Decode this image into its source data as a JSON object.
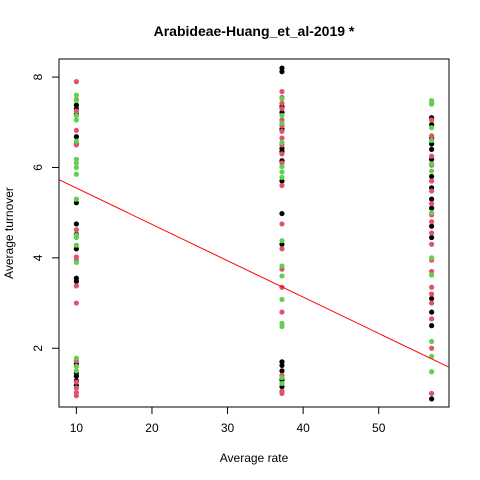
{
  "chart_data": {
    "type": "scatter",
    "title": "Arabideae-Huang_et_al-2019 *",
    "xlabel": "Average rate",
    "ylabel": "Average turnover",
    "xlim": [
      7.7,
      59.3
    ],
    "ylim": [
      0.7,
      8.4
    ],
    "x_ticks": [
      10,
      20,
      30,
      40,
      50
    ],
    "y_ticks": [
      2,
      4,
      6,
      8
    ],
    "grid": false,
    "legend": "none",
    "colors": {
      "black": "#000000",
      "red": "#DF536B",
      "green": "#61D04F",
      "fit": "#FF0000"
    },
    "series": [
      {
        "color_key": "black",
        "points": [
          [
            10,
            7.38
          ],
          [
            10,
            7.3
          ],
          [
            10,
            7.18
          ],
          [
            10,
            6.68
          ],
          [
            10,
            6.52
          ],
          [
            10,
            5.22
          ],
          [
            10,
            4.75
          ],
          [
            10,
            4.52
          ],
          [
            10,
            4.2
          ],
          [
            10,
            3.55
          ],
          [
            10,
            3.48
          ],
          [
            10,
            1.65
          ],
          [
            10,
            1.45
          ],
          [
            10,
            1.38
          ],
          [
            10,
            1.28
          ],
          [
            10,
            1.18
          ],
          [
            37.2,
            8.2
          ],
          [
            37.2,
            8.12
          ],
          [
            37.2,
            7.35
          ],
          [
            37.2,
            7.22
          ],
          [
            37.2,
            6.85
          ],
          [
            37.2,
            6.42
          ],
          [
            37.2,
            6.35
          ],
          [
            37.2,
            6.15
          ],
          [
            37.2,
            5.7
          ],
          [
            37.2,
            4.98
          ],
          [
            37.2,
            4.3
          ],
          [
            37.2,
            1.7
          ],
          [
            37.2,
            1.62
          ],
          [
            37.2,
            1.5
          ],
          [
            37.2,
            1.3
          ],
          [
            37.2,
            1.15
          ],
          [
            57,
            7.1
          ],
          [
            57,
            6.95
          ],
          [
            57,
            6.65
          ],
          [
            57,
            6.52
          ],
          [
            57,
            6.4
          ],
          [
            57,
            6.18
          ],
          [
            57,
            5.8
          ],
          [
            57,
            5.55
          ],
          [
            57,
            5.3
          ],
          [
            57,
            5.1
          ],
          [
            57,
            4.7
          ],
          [
            57,
            4.45
          ],
          [
            57,
            3.1
          ],
          [
            57,
            2.8
          ],
          [
            57,
            2.5
          ],
          [
            57,
            0.88
          ]
        ]
      },
      {
        "color_key": "red",
        "points": [
          [
            10,
            7.9
          ],
          [
            10,
            7.5
          ],
          [
            10,
            7.25
          ],
          [
            10,
            6.82
          ],
          [
            10,
            6.5
          ],
          [
            10,
            4.62
          ],
          [
            10,
            4.02
          ],
          [
            10,
            3.95
          ],
          [
            10,
            3.38
          ],
          [
            10,
            3.0
          ],
          [
            10,
            1.72
          ],
          [
            10,
            1.25
          ],
          [
            10,
            1.12
          ],
          [
            10,
            1.02
          ],
          [
            10,
            0.95
          ],
          [
            37.2,
            7.68
          ],
          [
            37.2,
            7.55
          ],
          [
            37.2,
            7.42
          ],
          [
            37.2,
            7.3
          ],
          [
            37.2,
            7.05
          ],
          [
            37.2,
            6.92
          ],
          [
            37.2,
            6.8
          ],
          [
            37.2,
            6.65
          ],
          [
            37.2,
            6.5
          ],
          [
            37.2,
            6.3
          ],
          [
            37.2,
            6.1
          ],
          [
            37.2,
            5.6
          ],
          [
            37.2,
            4.75
          ],
          [
            37.2,
            4.2
          ],
          [
            37.2,
            3.75
          ],
          [
            37.2,
            3.35
          ],
          [
            37.2,
            2.8
          ],
          [
            37.2,
            1.4
          ],
          [
            37.2,
            1.05
          ],
          [
            37.2,
            1.0
          ],
          [
            57,
            7.42
          ],
          [
            57,
            7.05
          ],
          [
            57,
            6.7
          ],
          [
            57,
            6.25
          ],
          [
            57,
            6.05
          ],
          [
            57,
            5.7
          ],
          [
            57,
            5.48
          ],
          [
            57,
            5.2
          ],
          [
            57,
            4.95
          ],
          [
            57,
            4.8
          ],
          [
            57,
            4.55
          ],
          [
            57,
            4.3
          ],
          [
            57,
            3.95
          ],
          [
            57,
            3.7
          ],
          [
            57,
            3.35
          ],
          [
            57,
            3.2
          ],
          [
            57,
            3.0
          ],
          [
            57,
            2.65
          ],
          [
            57,
            2.0
          ],
          [
            57,
            1.0
          ]
        ]
      },
      {
        "color_key": "green",
        "points": [
          [
            10,
            7.6
          ],
          [
            10,
            7.48
          ],
          [
            10,
            7.15
          ],
          [
            10,
            7.05
          ],
          [
            10,
            6.58
          ],
          [
            10,
            6.18
          ],
          [
            10,
            6.1
          ],
          [
            10,
            6.0
          ],
          [
            10,
            5.85
          ],
          [
            10,
            5.3
          ],
          [
            10,
            4.5
          ],
          [
            10,
            4.45
          ],
          [
            10,
            4.28
          ],
          [
            10,
            3.9
          ],
          [
            10,
            1.78
          ],
          [
            10,
            1.6
          ],
          [
            10,
            1.5
          ],
          [
            37.2,
            7.52
          ],
          [
            37.2,
            7.15
          ],
          [
            37.2,
            6.98
          ],
          [
            37.2,
            6.55
          ],
          [
            37.2,
            6.02
          ],
          [
            37.2,
            5.9
          ],
          [
            37.2,
            5.78
          ],
          [
            37.2,
            4.38
          ],
          [
            37.2,
            3.82
          ],
          [
            37.2,
            3.6
          ],
          [
            37.2,
            3.08
          ],
          [
            37.2,
            2.55
          ],
          [
            37.2,
            2.48
          ],
          [
            37.2,
            1.35
          ],
          [
            37.2,
            1.22
          ],
          [
            57,
            7.48
          ],
          [
            57,
            7.4
          ],
          [
            57,
            6.88
          ],
          [
            57,
            6.6
          ],
          [
            57,
            6.08
          ],
          [
            57,
            5.92
          ],
          [
            57,
            5.0
          ],
          [
            57,
            4.0
          ],
          [
            57,
            3.62
          ],
          [
            57,
            2.15
          ],
          [
            57,
            1.82
          ],
          [
            57,
            1.48
          ]
        ]
      }
    ],
    "fit_line": {
      "x1": 7.7,
      "y1": 5.73,
      "x2": 59.3,
      "y2": 1.58
    }
  }
}
